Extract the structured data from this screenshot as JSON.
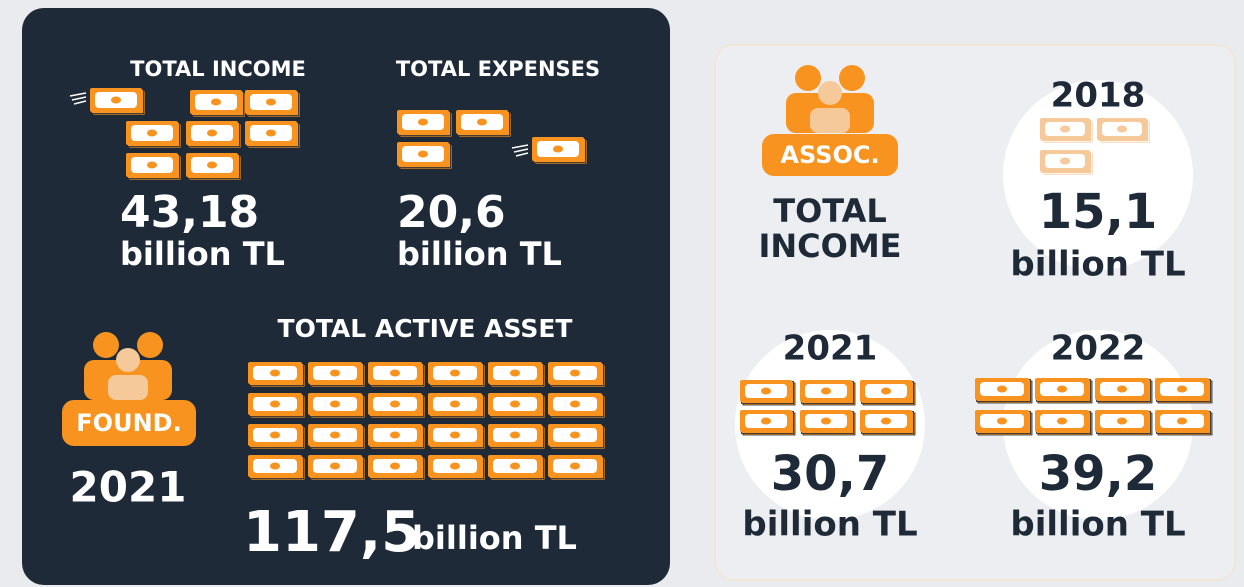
{
  "foundation": {
    "income": {
      "title": "TOTAL INCOME",
      "value": "43,18",
      "unit": "billion TL"
    },
    "expenses": {
      "title": "TOTAL EXPENSES",
      "value": "20,6",
      "unit": "billion TL"
    },
    "badge": "FOUND.",
    "year": "2021",
    "assets": {
      "title": "TOTAL ACTIVE ASSET",
      "value": "117,5",
      "unit": "billion TL"
    }
  },
  "association": {
    "badge": "ASSOC.",
    "title_line1": "TOTAL",
    "title_line2": "INCOME",
    "years": [
      {
        "year": "2018",
        "value": "15,1",
        "unit": "billion TL"
      },
      {
        "year": "2021",
        "value": "30,7",
        "unit": "billion TL"
      },
      {
        "year": "2022",
        "value": "39,2",
        "unit": "billion TL"
      }
    ]
  }
}
